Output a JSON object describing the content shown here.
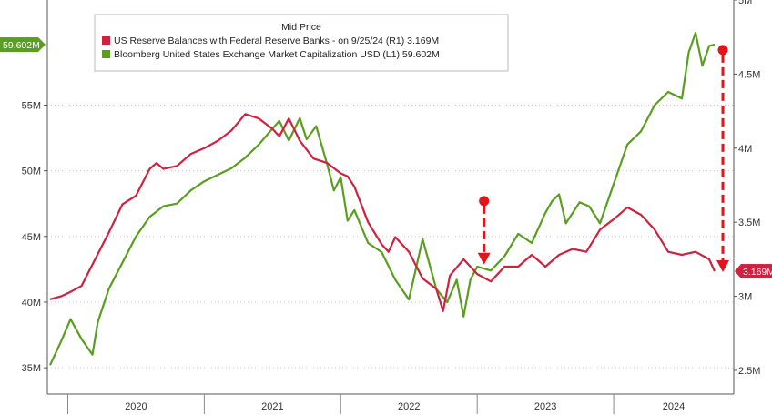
{
  "chart_data": {
    "type": "line",
    "legend": {
      "title": "Mid Price",
      "placement": "top-left",
      "entries": [
        {
          "series": "reserves",
          "label": "US Reserve Balances with Federal Reserve Banks -  on 9/25/24  (R1) 3.169M"
        },
        {
          "series": "mktcap",
          "label": "Bloomberg United States Exchange Market Capitalization USD  (L1)     59.602M"
        }
      ]
    },
    "x_axis": {
      "labels": [
        "2020",
        "2021",
        "2022",
        "2023",
        "2024"
      ],
      "range": [
        2019.85,
        2024.88
      ]
    },
    "left_axis": {
      "ticks": [
        "35M",
        "40M",
        "45M",
        "50M",
        "55M"
      ],
      "tick_values": [
        35,
        40,
        45,
        50,
        55
      ],
      "range": [
        33.0,
        63.0
      ],
      "last_value_label": "59.602M",
      "last_value": 59.602
    },
    "right_axis": {
      "ticks": [
        "2.5M",
        "3M",
        "3.5M",
        "4M",
        "4.5M",
        "5M"
      ],
      "tick_values": [
        2.5,
        3.0,
        3.5,
        4.0,
        4.5,
        5.0
      ],
      "range": [
        2.34,
        5.0
      ],
      "last_value_label": "3.169M",
      "last_value": 3.169
    },
    "grid": "horizontal dotted",
    "series": [
      {
        "id": "mktcap",
        "axis": "left",
        "color": "#5a9e1e",
        "x": [
          2019.87,
          2019.95,
          2020.02,
          2020.1,
          2020.18,
          2020.22,
          2020.3,
          2020.4,
          2020.5,
          2020.6,
          2020.7,
          2020.8,
          2020.9,
          2021.0,
          2021.1,
          2021.2,
          2021.3,
          2021.4,
          2021.5,
          2021.55,
          2021.62,
          2021.7,
          2021.75,
          2021.82,
          2021.9,
          2021.95,
          2022.0,
          2022.05,
          2022.1,
          2022.2,
          2022.3,
          2022.4,
          2022.5,
          2022.6,
          2022.7,
          2022.78,
          2022.85,
          2022.9,
          2022.95,
          2023.0,
          2023.1,
          2023.2,
          2023.3,
          2023.4,
          2023.5,
          2023.55,
          2023.6,
          2023.65,
          2023.75,
          2023.82,
          2023.9,
          2024.0,
          2024.1,
          2024.2,
          2024.3,
          2024.4,
          2024.5,
          2024.55,
          2024.6,
          2024.65,
          2024.7,
          2024.74
        ],
        "values": [
          35.2,
          37.0,
          38.7,
          37.2,
          36.0,
          38.5,
          41.0,
          43.0,
          45.0,
          46.5,
          47.3,
          47.5,
          48.5,
          49.2,
          49.7,
          50.2,
          51.0,
          52.0,
          53.2,
          53.8,
          52.3,
          54.0,
          52.4,
          53.4,
          50.5,
          48.5,
          49.5,
          46.2,
          47.0,
          44.5,
          43.8,
          41.7,
          40.2,
          44.8,
          41.0,
          40.0,
          41.7,
          38.9,
          41.7,
          42.7,
          42.4,
          43.5,
          45.2,
          44.5,
          46.8,
          47.7,
          48.2,
          46.0,
          47.6,
          47.3,
          46.0,
          49.0,
          52.0,
          53.0,
          55.0,
          56.0,
          55.5,
          59.0,
          60.5,
          58.0,
          59.5,
          59.602
        ]
      },
      {
        "id": "reserves",
        "axis": "right",
        "color": "#d0213f",
        "x": [
          2019.87,
          2019.95,
          2020.02,
          2020.1,
          2020.2,
          2020.3,
          2020.4,
          2020.5,
          2020.6,
          2020.65,
          2020.7,
          2020.8,
          2020.9,
          2021.0,
          2021.1,
          2021.2,
          2021.3,
          2021.4,
          2021.5,
          2021.55,
          2021.62,
          2021.7,
          2021.8,
          2021.9,
          2022.0,
          2022.05,
          2022.1,
          2022.2,
          2022.3,
          2022.35,
          2022.4,
          2022.5,
          2022.6,
          2022.7,
          2022.75,
          2022.8,
          2022.9,
          2023.0,
          2023.1,
          2023.2,
          2023.3,
          2023.4,
          2023.5,
          2023.6,
          2023.7,
          2023.8,
          2023.9,
          2024.0,
          2024.1,
          2024.2,
          2024.3,
          2024.4,
          2024.5,
          2024.6,
          2024.7,
          2024.74
        ],
        "values": [
          2.98,
          3.0,
          3.03,
          3.07,
          3.25,
          3.43,
          3.62,
          3.68,
          3.86,
          3.9,
          3.86,
          3.88,
          3.96,
          4.0,
          4.05,
          4.12,
          4.23,
          4.2,
          4.13,
          4.08,
          4.2,
          4.05,
          3.93,
          3.9,
          3.83,
          3.81,
          3.74,
          3.5,
          3.35,
          3.3,
          3.4,
          3.3,
          3.12,
          3.05,
          2.9,
          3.14,
          3.25,
          3.15,
          3.1,
          3.2,
          3.2,
          3.28,
          3.2,
          3.28,
          3.32,
          3.3,
          3.45,
          3.52,
          3.6,
          3.55,
          3.45,
          3.3,
          3.28,
          3.3,
          3.25,
          3.169
        ]
      }
    ],
    "annotations": [
      {
        "type": "dashed-arrow",
        "color": "#e3151a",
        "from": {
          "x": 2023.05,
          "left_value": 47.7
        },
        "to": {
          "x": 2023.05,
          "right_value": 3.22
        }
      },
      {
        "type": "dashed-arrow",
        "color": "#e3151a",
        "from": {
          "x": 2024.8,
          "left_value": 59.2
        },
        "to": {
          "x": 2024.8,
          "right_value": 3.169
        }
      }
    ]
  }
}
